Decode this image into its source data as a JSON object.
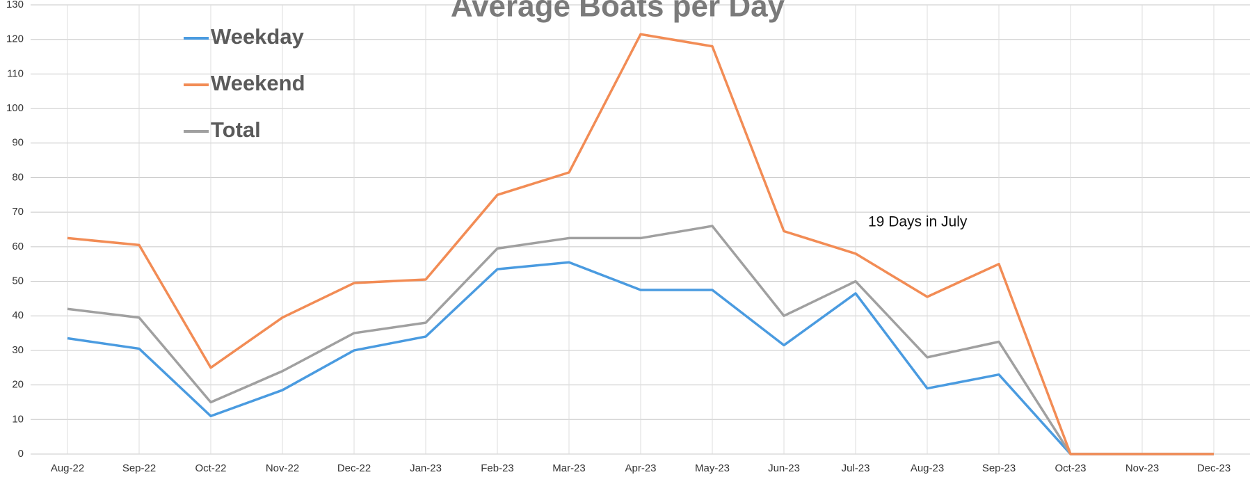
{
  "chart_data": {
    "type": "line",
    "title": "Average Boats per Day",
    "categories": [
      "Aug-22",
      "Sep-22",
      "Oct-22",
      "Nov-22",
      "Dec-22",
      "Jan-23",
      "Feb-23",
      "Mar-23",
      "Apr-23",
      "May-23",
      "Jun-23",
      "Jul-23",
      "Aug-23",
      "Sep-23",
      "Oct-23",
      "Nov-23",
      "Dec-23"
    ],
    "series": [
      {
        "name": "Weekday",
        "color": "#4a9be0",
        "values": [
          33.5,
          30.5,
          11,
          18.5,
          30,
          34,
          53.5,
          55.5,
          47.5,
          47.5,
          31.5,
          46.5,
          19,
          23,
          0,
          0,
          0
        ]
      },
      {
        "name": "Weekend",
        "color": "#f28c55",
        "values": [
          62.5,
          60.5,
          25,
          39.5,
          49.5,
          50.5,
          75,
          81.5,
          121.5,
          118,
          64.5,
          58,
          45.5,
          55,
          0,
          0,
          0
        ]
      },
      {
        "name": "Total",
        "color": "#a0a0a0",
        "values": [
          42,
          39.5,
          15,
          24,
          35,
          38,
          59.5,
          62.5,
          62.5,
          66,
          40,
          50,
          28,
          32.5,
          0,
          0,
          0
        ]
      }
    ],
    "annotation": "19 Days in July",
    "ylim": [
      0,
      130
    ],
    "yticks": [
      0,
      10,
      20,
      30,
      40,
      50,
      60,
      70,
      80,
      90,
      100,
      110,
      120,
      130
    ],
    "grid": true
  }
}
